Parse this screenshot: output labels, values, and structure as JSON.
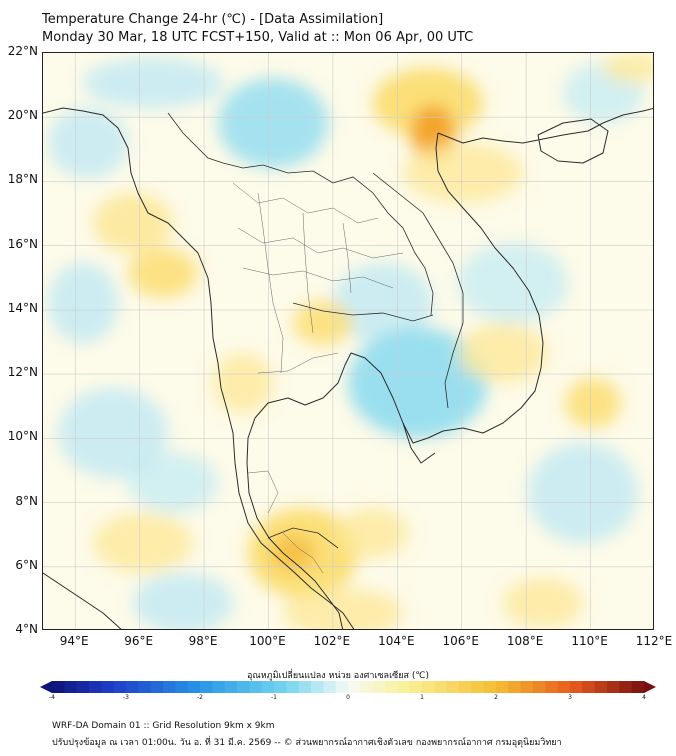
{
  "title": {
    "line1": "Temperature Change 24-hr (℃) - [Data Assimilation]",
    "line2": "Monday 30 Mar, 18 UTC FCST+150, Valid at :: Mon 06 Apr, 00 UTC"
  },
  "map": {
    "lat_range": [
      4,
      22
    ],
    "lon_range": [
      93,
      112
    ],
    "lat_labels": [
      "22°N",
      "20°N",
      "18°N",
      "16°N",
      "14°N",
      "12°N",
      "10°N",
      "8°N",
      "6°N",
      "4°N"
    ],
    "lon_labels": [
      "94°E",
      "96°E",
      "98°E",
      "100°E",
      "102°E",
      "104°E",
      "106°E",
      "108°E",
      "110°E",
      "112°E"
    ],
    "colors": {
      "background": "#fdfbe9",
      "cool": "#8fdcf0",
      "warm": "#fbdc6c",
      "hot": "#f3a128",
      "coast": "#2b2b2b",
      "grid": "#cccccc"
    }
  },
  "colorbar": {
    "title": "อุณหภูมิเปลี่ยนแปลง หน่วย องศาเซลเซียส (℃)",
    "ticks": [
      "-4",
      "-3",
      "-2",
      "-1",
      "0",
      "1",
      "2",
      "3",
      "4"
    ],
    "range": [
      -4,
      4
    ]
  },
  "footer": {
    "line1": "WRF-DA Domain 01 :: Grid Resolution 9km x 9km",
    "line2": "ปรับปรุงข้อมูล ณ เวลา 01:00น. วัน อ. ที่ 31 มี.ค. 2569 -- © ส่วนพยากรณ์อากาศเชิงตัวเลข กองพยากรณ์อากาศ กรมอุตุนิยมวิทยา"
  }
}
